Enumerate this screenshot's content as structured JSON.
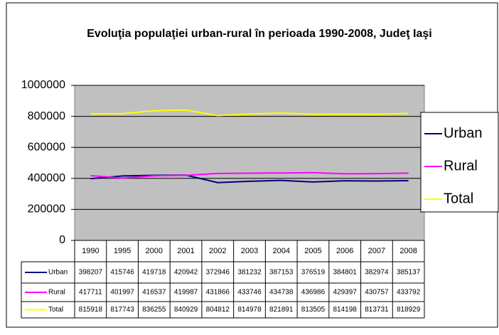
{
  "chart_data": {
    "type": "line",
    "title": "Evoluţia populaţiei urban-rural în perioada 1990-2008, Judeţ Iaşi",
    "categories": [
      "1990",
      "1995",
      "2000",
      "2001",
      "2002",
      "2003",
      "2004",
      "2005",
      "2006",
      "2007",
      "2008"
    ],
    "series": [
      {
        "name": "Urban",
        "color": "#000080",
        "values": [
          398207,
          415746,
          419718,
          420942,
          372946,
          381232,
          387153,
          376519,
          384801,
          382974,
          385137
        ]
      },
      {
        "name": "Rural",
        "color": "#ff00ff",
        "values": [
          417711,
          401997,
          416537,
          419987,
          431866,
          433746,
          434738,
          436986,
          429397,
          430757,
          433792
        ]
      },
      {
        "name": "Total",
        "color": "#ffff00",
        "values": [
          815918,
          817743,
          836255,
          840929,
          804812,
          814978,
          821891,
          813505,
          814198,
          813731,
          818929
        ]
      }
    ],
    "ylim": [
      0,
      1000000
    ],
    "yticks": [
      0,
      200000,
      400000,
      600000,
      800000,
      1000000
    ],
    "grid": true,
    "legend": "right"
  }
}
